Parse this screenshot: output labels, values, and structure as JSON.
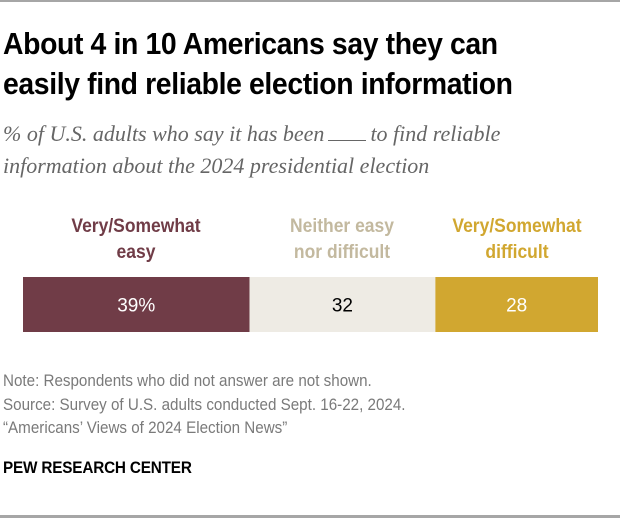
{
  "header": {
    "title_line1": "About 4 in 10 Americans say they can",
    "title_line2": "easily find reliable election information",
    "subtitle_part1": "% of U.S. adults who say it has been",
    "subtitle_part2": "to find reliable",
    "subtitle_line2": "information about the 2024 presidential election"
  },
  "chart_data": {
    "type": "bar",
    "orientation": "horizontal-stacked",
    "title": "About 4 in 10 Americans say they can easily find reliable election information",
    "subtitle": "% of U.S. adults who say it has been ___ to find reliable information about the 2024 presidential election",
    "categories": [
      "Very/Somewhat easy",
      "Neither easy nor difficult",
      "Very/Somewhat difficult"
    ],
    "series": [
      {
        "name": "Very/Somewhat easy",
        "label_lines": [
          "Very/Somewhat",
          "easy"
        ],
        "value": 39,
        "display": "39%",
        "color": "#703c47",
        "label_color": "#703c47",
        "text_color": "#ffffff"
      },
      {
        "name": "Neither easy nor difficult",
        "label_lines": [
          "Neither easy",
          "nor difficult"
        ],
        "value": 32,
        "display": "32",
        "color": "#eeebe4",
        "label_color": "#c3b99f",
        "text_color": "#000000"
      },
      {
        "name": "Very/Somewhat difficult",
        "label_lines": [
          "Very/Somewhat",
          "difficult"
        ],
        "value": 28,
        "display": "28",
        "color": "#d1a730",
        "label_color": "#d1a730",
        "text_color": "#ffffff"
      }
    ],
    "xlim": [
      0,
      99
    ],
    "legend": "top",
    "grid": false
  },
  "footer": {
    "note": "Note: Respondents who did not answer are not shown.",
    "source": "Source: Survey of U.S. adults conducted Sept. 16-22, 2024.",
    "report": "“Americans’ Views of 2024 Election News”",
    "brand": "PEW RESEARCH CENTER"
  }
}
